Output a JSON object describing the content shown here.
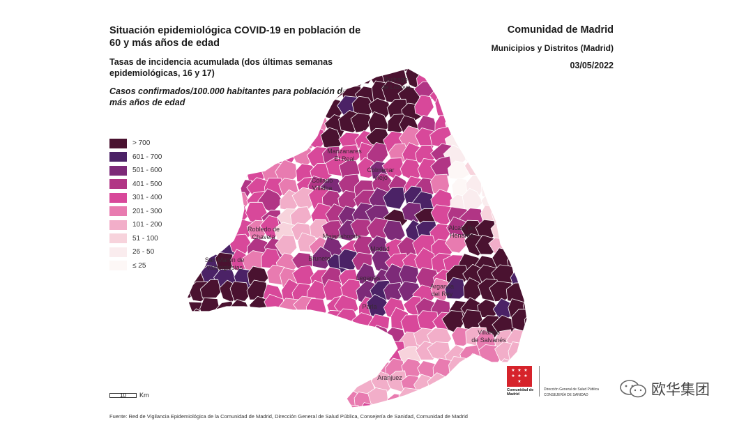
{
  "header": {
    "title": "Situación epidemiológica COVID-19 en población de 60 y más años de edad",
    "subtitle": "Tasas de incidencia acumulada (dos últimas semanas epidemiológicas, 16 y 17)",
    "note": "Casos confirmados/100.000 habitantes para población de 60 y más años de edad"
  },
  "region_info": {
    "region": "Comunidad de Madrid",
    "scope": "Municipios y Distritos (Madrid)",
    "date": "03/05/2022"
  },
  "legend": [
    {
      "label": "> 700",
      "color": "#4a1230"
    },
    {
      "label": "601 - 700",
      "color": "#4b2266"
    },
    {
      "label": "501 - 600",
      "color": "#7d2a78"
    },
    {
      "label": "401 - 500",
      "color": "#b13585"
    },
    {
      "label": "301 - 400",
      "color": "#d8489a"
    },
    {
      "label": "201 - 300",
      "color": "#e87bb0"
    },
    {
      "label": "101 - 200",
      "color": "#f2aec9"
    },
    {
      "label": "51 - 100",
      "color": "#f7d3dc"
    },
    {
      "label": "26 - 50",
      "color": "#faecee"
    },
    {
      "label": "≤ 25",
      "color": "#fdf7f6"
    }
  ],
  "map_labels": [
    {
      "name": "Buitrago de Lozoya",
      "line1": "Buitrago",
      "line2": "de Lozoya"
    },
    {
      "name": "Manzanares El Real",
      "line1": "Manzanares",
      "line2": "El Real"
    },
    {
      "name": "Colmenar Viejo",
      "line1": "Colmenar",
      "line2": "Viejo"
    },
    {
      "name": "Collado Villalba",
      "line1": "Collado",
      "line2": "Villalba"
    },
    {
      "name": "Robledo de Chavela",
      "line1": "Robledo de",
      "line2": "Chavela"
    },
    {
      "name": "Majadahonda",
      "line1": "Majadahonda",
      "line2": ""
    },
    {
      "name": "Madrid",
      "line1": "Madrid",
      "line2": ""
    },
    {
      "name": "Alcalá de Henares",
      "line1": "Alcalá de",
      "line2": "Henares"
    },
    {
      "name": "San Martín de Valdeiglesias",
      "line1": "San Martín de",
      "line2": "Valdeiglesias"
    },
    {
      "name": "Brunete",
      "line1": "Brunete",
      "line2": ""
    },
    {
      "name": "Leganés",
      "line1": "Leganés",
      "line2": ""
    },
    {
      "name": "Arganda del Rey",
      "line1": "Arganda",
      "line2": "del Rey"
    },
    {
      "name": "Parla",
      "line1": "Parla",
      "line2": ""
    },
    {
      "name": "Villarejo de Salvanés",
      "line1": "Villarejo",
      "line2": "de Salvanés"
    },
    {
      "name": "Aranjuez",
      "line1": "Aranjuez",
      "line2": ""
    }
  ],
  "scalebar": {
    "value": "10",
    "unit": "Km"
  },
  "source": "Fuente: Red de Vigilancia Epidemiológica de la Comunidad de Madrid, Dirección General de Salud Pública, Consejería de Sanidad, Comunidad de Madrid",
  "logo": {
    "name": "Comunidad de Madrid",
    "line1": "Dirección General de Salud Pública",
    "line2": "CONSEJERÍA DE SANIDAD"
  },
  "watermark": {
    "text": "欧华集团"
  }
}
